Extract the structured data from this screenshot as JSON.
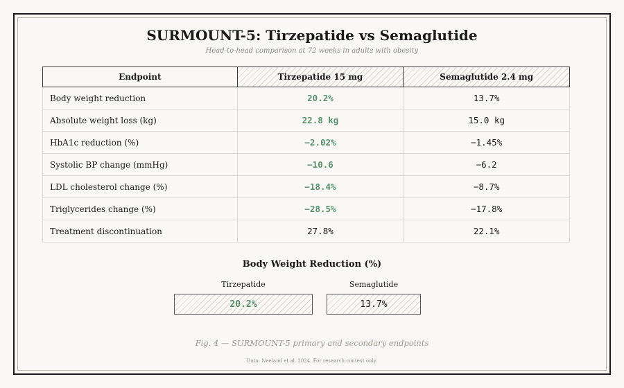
{
  "title": "SURMOUNT-5: Tirzepatide vs Semaglutide",
  "subtitle": "Head-to-head comparison at 72 weeks in adults with obesity",
  "table": {
    "headers": [
      "Endpoint",
      "Tirzepatide 15 mg",
      "Semaglutide 2.4 mg"
    ],
    "rows": [
      {
        "endpoint": "Body weight reduction",
        "tirzepatide": "20.2%",
        "semaglutide": "13.7%",
        "tirzepatide_favored": true
      },
      {
        "endpoint": "Absolute weight loss (kg)",
        "tirzepatide": "22.8 kg",
        "semaglutide": "15.0 kg",
        "tirzepatide_favored": true
      },
      {
        "endpoint": "HbA1c reduction (%)",
        "tirzepatide": "−2.02%",
        "semaglutide": "−1.45%",
        "tirzepatide_favored": true
      },
      {
        "endpoint": "Systolic BP change (mmHg)",
        "tirzepatide": "−10.6",
        "semaglutide": "−6.2",
        "tirzepatide_favored": true
      },
      {
        "endpoint": "LDL cholesterol change (%)",
        "tirzepatide": "−18.4%",
        "semaglutide": "−8.7%",
        "tirzepatide_favored": true
      },
      {
        "endpoint": "Triglycerides change (%)",
        "tirzepatide": "−28.5%",
        "semaglutide": "−17.8%",
        "tirzepatide_favored": true
      },
      {
        "endpoint": "Treatment discontinuation",
        "tirzepatide": "27.8%",
        "semaglutide": "22.1%",
        "tirzepatide_favored": false
      }
    ]
  },
  "chart_data": {
    "type": "bar",
    "title": "Body Weight Reduction (%)",
    "categories": [
      "Tirzepatide",
      "Semaglutide"
    ],
    "values": [
      20.2,
      13.7
    ],
    "value_labels": [
      "20.2%",
      "13.7%"
    ]
  },
  "caption": "Fig. 4 — SURMOUNT-5 primary and secondary endpoints",
  "source": "Data: Neeland et al. 2024. For research context only.",
  "colors": {
    "favored": "#5a8f6c",
    "border": "#1a1a1a",
    "background": "#f9f8f4"
  }
}
